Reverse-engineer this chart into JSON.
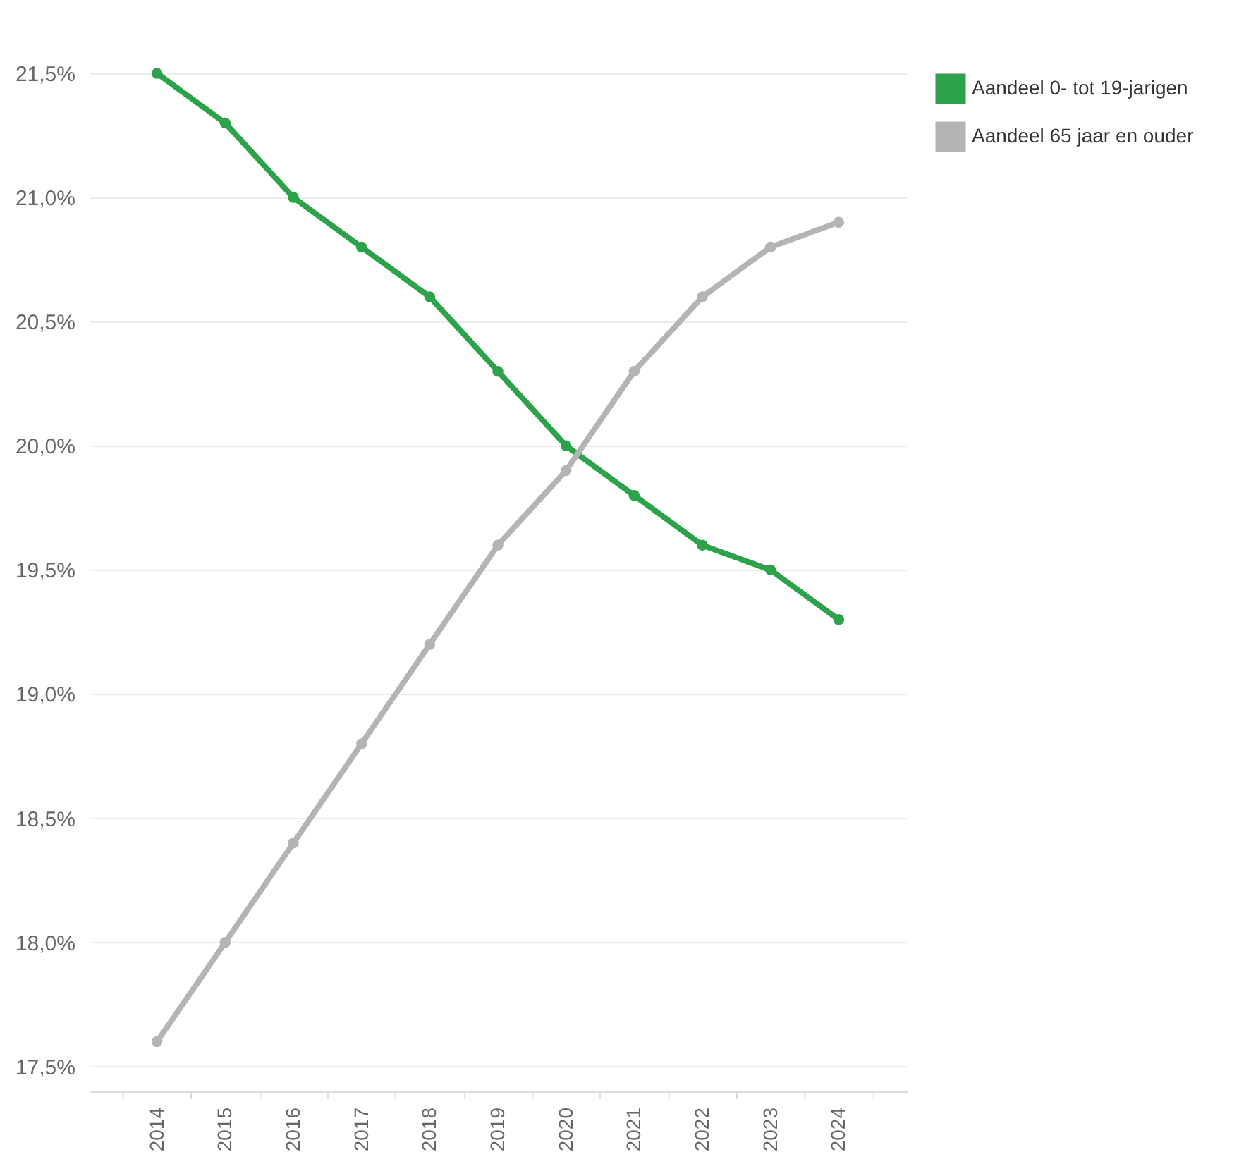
{
  "chart_data": {
    "type": "line",
    "categories": [
      "2014",
      "2015",
      "2016",
      "2017",
      "2018",
      "2019",
      "2020",
      "2021",
      "2022",
      "2023",
      "2024"
    ],
    "series": [
      {
        "name": "Aandeel 0- tot 19-jarigen",
        "color": "#2ca24a",
        "values": [
          21.5,
          21.3,
          21.0,
          20.8,
          20.6,
          20.3,
          20.0,
          19.8,
          19.6,
          19.5,
          19.3
        ]
      },
      {
        "name": "Aandeel 65 jaar en ouder",
        "color": "#b4b4b4",
        "values": [
          17.6,
          18.0,
          18.4,
          18.8,
          19.2,
          19.6,
          19.9,
          20.3,
          20.6,
          20.8,
          20.9
        ]
      }
    ],
    "ylim": [
      17.4,
      21.5
    ],
    "yticks": [
      {
        "value": 17.5,
        "label": "17,5%"
      },
      {
        "value": 18,
        "label": "18,0%"
      },
      {
        "value": 18.5,
        "label": "18,5%"
      },
      {
        "value": 19,
        "label": "19,0%"
      },
      {
        "value": 19.5,
        "label": "19,5%"
      },
      {
        "value": 20,
        "label": "20,0%"
      },
      {
        "value": 20.5,
        "label": "20,5%"
      },
      {
        "value": 21,
        "label": "21,0%"
      },
      {
        "value": 21.5,
        "label": "21,5%"
      }
    ],
    "grid": "y",
    "legend": "top right",
    "marker": "circle",
    "line_style": "solid"
  }
}
